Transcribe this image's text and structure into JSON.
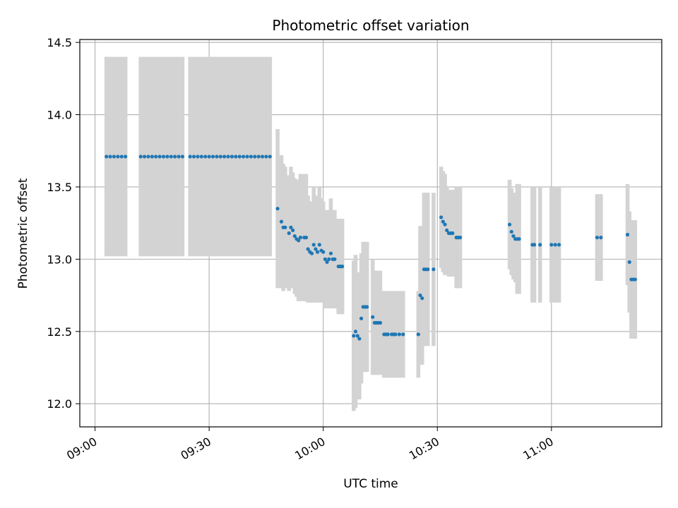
{
  "chart_data": {
    "type": "scatter",
    "title": "Photometric offset variation",
    "xlabel": "UTC time",
    "ylabel": "Photometric offset",
    "x_ticks": [
      "09:00",
      "09:30",
      "10:00",
      "10:30",
      "11:00"
    ],
    "y_ticks": [
      "12.0",
      "12.5",
      "13.0",
      "13.5",
      "14.0",
      "14.5"
    ],
    "xlim": [
      "08:56",
      "11:29"
    ],
    "ylim": [
      11.84,
      14.52
    ],
    "grid": true,
    "point_color": "#1f77b4",
    "errorbar_color": "#d3d3d3",
    "points": [
      {
        "x": "09:03",
        "y": 13.71,
        "err": 0.69
      },
      {
        "x": "09:04",
        "y": 13.71,
        "err": 0.69
      },
      {
        "x": "09:05",
        "y": 13.71,
        "err": 0.69
      },
      {
        "x": "09:06",
        "y": 13.71,
        "err": 0.69
      },
      {
        "x": "09:07",
        "y": 13.71,
        "err": 0.69
      },
      {
        "x": "09:08",
        "y": 13.71,
        "err": 0.69
      },
      {
        "x": "09:12",
        "y": 13.71,
        "err": 0.69
      },
      {
        "x": "09:13",
        "y": 13.71,
        "err": 0.69
      },
      {
        "x": "09:14",
        "y": 13.71,
        "err": 0.69
      },
      {
        "x": "09:15",
        "y": 13.71,
        "err": 0.69
      },
      {
        "x": "09:16",
        "y": 13.71,
        "err": 0.69
      },
      {
        "x": "09:17",
        "y": 13.71,
        "err": 0.69
      },
      {
        "x": "09:18",
        "y": 13.71,
        "err": 0.69
      },
      {
        "x": "09:19",
        "y": 13.71,
        "err": 0.69
      },
      {
        "x": "09:20",
        "y": 13.71,
        "err": 0.69
      },
      {
        "x": "09:21",
        "y": 13.71,
        "err": 0.69
      },
      {
        "x": "09:22",
        "y": 13.71,
        "err": 0.69
      },
      {
        "x": "09:23",
        "y": 13.71,
        "err": 0.69
      },
      {
        "x": "09:25",
        "y": 13.71,
        "err": 0.69
      },
      {
        "x": "09:26",
        "y": 13.71,
        "err": 0.69
      },
      {
        "x": "09:27",
        "y": 13.71,
        "err": 0.69
      },
      {
        "x": "09:28",
        "y": 13.71,
        "err": 0.69
      },
      {
        "x": "09:29",
        "y": 13.71,
        "err": 0.69
      },
      {
        "x": "09:30",
        "y": 13.71,
        "err": 0.69
      },
      {
        "x": "09:31",
        "y": 13.71,
        "err": 0.69
      },
      {
        "x": "09:32",
        "y": 13.71,
        "err": 0.69
      },
      {
        "x": "09:33",
        "y": 13.71,
        "err": 0.69
      },
      {
        "x": "09:34",
        "y": 13.71,
        "err": 0.69
      },
      {
        "x": "09:35",
        "y": 13.71,
        "err": 0.69
      },
      {
        "x": "09:36",
        "y": 13.71,
        "err": 0.69
      },
      {
        "x": "09:37",
        "y": 13.71,
        "err": 0.69
      },
      {
        "x": "09:38",
        "y": 13.71,
        "err": 0.69
      },
      {
        "x": "09:39",
        "y": 13.71,
        "err": 0.69
      },
      {
        "x": "09:40",
        "y": 13.71,
        "err": 0.69
      },
      {
        "x": "09:41",
        "y": 13.71,
        "err": 0.69
      },
      {
        "x": "09:42",
        "y": 13.71,
        "err": 0.69
      },
      {
        "x": "09:43",
        "y": 13.71,
        "err": 0.69
      },
      {
        "x": "09:44",
        "y": 13.71,
        "err": 0.69
      },
      {
        "x": "09:45",
        "y": 13.71,
        "err": 0.69
      },
      {
        "x": "09:46",
        "y": 13.71,
        "err": 0.69
      },
      {
        "x": "09:48",
        "y": 13.35,
        "err": 0.55
      },
      {
        "x": "09:49",
        "y": 13.26,
        "err": 0.46
      },
      {
        "x": "09:49.5",
        "y": 13.22,
        "err": 0.44
      },
      {
        "x": "09:50",
        "y": 13.22,
        "err": 0.42
      },
      {
        "x": "09:51",
        "y": 13.18,
        "err": 0.4
      },
      {
        "x": "09:51.5",
        "y": 13.22,
        "err": 0.42
      },
      {
        "x": "09:52",
        "y": 13.2,
        "err": 0.4
      },
      {
        "x": "09:52.5",
        "y": 13.16,
        "err": 0.4
      },
      {
        "x": "09:53",
        "y": 13.14,
        "err": 0.4
      },
      {
        "x": "09:53.5",
        "y": 13.13,
        "err": 0.42
      },
      {
        "x": "09:54",
        "y": 13.15,
        "err": 0.44
      },
      {
        "x": "09:55",
        "y": 13.15,
        "err": 0.44
      },
      {
        "x": "09:55.5",
        "y": 13.15,
        "err": 0.44
      },
      {
        "x": "09:56",
        "y": 13.07,
        "err": 0.37
      },
      {
        "x": "09:56.5",
        "y": 13.05,
        "err": 0.35
      },
      {
        "x": "09:57",
        "y": 13.04,
        "err": 0.34
      },
      {
        "x": "09:57.5",
        "y": 13.1,
        "err": 0.4
      },
      {
        "x": "09:58",
        "y": 13.07,
        "err": 0.37
      },
      {
        "x": "09:58.5",
        "y": 13.05,
        "err": 0.35
      },
      {
        "x": "09:59",
        "y": 13.1,
        "err": 0.4
      },
      {
        "x": "09:59.5",
        "y": 13.06,
        "err": 0.36
      },
      {
        "x": "10:00",
        "y": 13.05,
        "err": 0.35
      },
      {
        "x": "10:00.5",
        "y": 13.0,
        "err": 0.34
      },
      {
        "x": "10:01",
        "y": 12.98,
        "err": 0.32
      },
      {
        "x": "10:01.5",
        "y": 13.0,
        "err": 0.34
      },
      {
        "x": "10:02",
        "y": 13.04,
        "err": 0.38
      },
      {
        "x": "10:02.5",
        "y": 13.0,
        "err": 0.34
      },
      {
        "x": "10:03",
        "y": 13.0,
        "err": 0.34
      },
      {
        "x": "10:04",
        "y": 12.95,
        "err": 0.33
      },
      {
        "x": "10:04.5",
        "y": 12.95,
        "err": 0.33
      },
      {
        "x": "10:05",
        "y": 12.95,
        "err": 0.33
      },
      {
        "x": "10:08",
        "y": 12.47,
        "err": 0.52
      },
      {
        "x": "10:08.5",
        "y": 12.5,
        "err": 0.53
      },
      {
        "x": "10:09",
        "y": 12.47,
        "err": 0.44
      },
      {
        "x": "10:09.5",
        "y": 12.45,
        "err": 0.42
      },
      {
        "x": "10:10",
        "y": 12.59,
        "err": 0.45
      },
      {
        "x": "10:10.5",
        "y": 12.67,
        "err": 0.45
      },
      {
        "x": "10:11",
        "y": 12.67,
        "err": 0.45
      },
      {
        "x": "10:11.5",
        "y": 12.67,
        "err": 0.45
      },
      {
        "x": "10:13",
        "y": 12.6,
        "err": 0.4
      },
      {
        "x": "10:13.5",
        "y": 12.56,
        "err": 0.36
      },
      {
        "x": "10:14",
        "y": 12.56,
        "err": 0.36
      },
      {
        "x": "10:14.5",
        "y": 12.56,
        "err": 0.36
      },
      {
        "x": "10:15",
        "y": 12.56,
        "err": 0.36
      },
      {
        "x": "10:16",
        "y": 12.48,
        "err": 0.3
      },
      {
        "x": "10:16.5",
        "y": 12.48,
        "err": 0.3
      },
      {
        "x": "10:17",
        "y": 12.48,
        "err": 0.3
      },
      {
        "x": "10:18",
        "y": 12.48,
        "err": 0.3
      },
      {
        "x": "10:18.5",
        "y": 12.48,
        "err": 0.3
      },
      {
        "x": "10:19",
        "y": 12.48,
        "err": 0.3
      },
      {
        "x": "10:20",
        "y": 12.48,
        "err": 0.3
      },
      {
        "x": "10:21",
        "y": 12.48,
        "err": 0.3
      },
      {
        "x": "10:25",
        "y": 12.48,
        "err": 0.3
      },
      {
        "x": "10:25.5",
        "y": 12.75,
        "err": 0.48
      },
      {
        "x": "10:26",
        "y": 12.73,
        "err": 0.46
      },
      {
        "x": "10:26.5",
        "y": 12.93,
        "err": 0.53
      },
      {
        "x": "10:27",
        "y": 12.93,
        "err": 0.53
      },
      {
        "x": "10:27.5",
        "y": 12.93,
        "err": 0.53
      },
      {
        "x": "10:29",
        "y": 12.93,
        "err": 0.53
      },
      {
        "x": "10:31",
        "y": 13.29,
        "err": 0.35
      },
      {
        "x": "10:31.5",
        "y": 13.26,
        "err": 0.35
      },
      {
        "x": "10:32",
        "y": 13.24,
        "err": 0.35
      },
      {
        "x": "10:32.5",
        "y": 13.2,
        "err": 0.3
      },
      {
        "x": "10:33",
        "y": 13.18,
        "err": 0.3
      },
      {
        "x": "10:33.5",
        "y": 13.18,
        "err": 0.3
      },
      {
        "x": "10:34",
        "y": 13.18,
        "err": 0.3
      },
      {
        "x": "10:35",
        "y": 13.15,
        "err": 0.35
      },
      {
        "x": "10:35.5",
        "y": 13.15,
        "err": 0.35
      },
      {
        "x": "10:36",
        "y": 13.15,
        "err": 0.35
      },
      {
        "x": "10:49",
        "y": 13.24,
        "err": 0.31
      },
      {
        "x": "10:49.5",
        "y": 13.19,
        "err": 0.3
      },
      {
        "x": "10:50",
        "y": 13.16,
        "err": 0.3
      },
      {
        "x": "10:50.5",
        "y": 13.14,
        "err": 0.3
      },
      {
        "x": "10:51",
        "y": 13.14,
        "err": 0.38
      },
      {
        "x": "10:51.5",
        "y": 13.14,
        "err": 0.38
      },
      {
        "x": "10:55",
        "y": 13.1,
        "err": 0.4
      },
      {
        "x": "10:55.5",
        "y": 13.1,
        "err": 0.4
      },
      {
        "x": "10:57",
        "y": 13.1,
        "err": 0.4
      },
      {
        "x": "11:00",
        "y": 13.1,
        "err": 0.4
      },
      {
        "x": "11:01",
        "y": 13.1,
        "err": 0.4
      },
      {
        "x": "11:02",
        "y": 13.1,
        "err": 0.4
      },
      {
        "x": "11:12",
        "y": 13.15,
        "err": 0.3
      },
      {
        "x": "11:13",
        "y": 13.15,
        "err": 0.3
      },
      {
        "x": "11:20",
        "y": 13.17,
        "err": 0.35
      },
      {
        "x": "11:20.5",
        "y": 12.98,
        "err": 0.35
      },
      {
        "x": "11:21",
        "y": 12.86,
        "err": 0.41
      },
      {
        "x": "11:21.5",
        "y": 12.86,
        "err": 0.41
      },
      {
        "x": "11:22",
        "y": 12.86,
        "err": 0.41
      }
    ]
  }
}
